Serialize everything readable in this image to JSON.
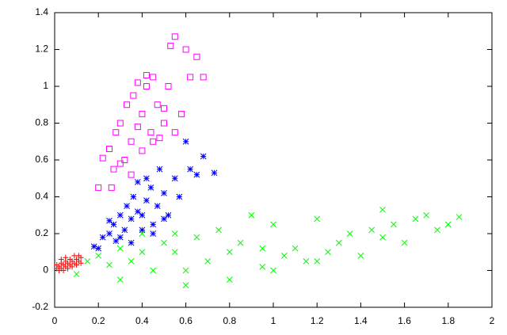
{
  "chart_data": {
    "type": "scatter",
    "xlim": [
      0,
      2
    ],
    "ylim": [
      -0.2,
      1.4
    ],
    "xticks": [
      0,
      0.2,
      0.4,
      0.6,
      0.8,
      1,
      1.2,
      1.4,
      1.6,
      1.8,
      2
    ],
    "yticks": [
      -0.2,
      0,
      0.2,
      0.4,
      0.6,
      0.8,
      1,
      1.2,
      1.4
    ],
    "grid": false,
    "series": [
      {
        "color": "#00ff00",
        "marker": "x",
        "x": [
          0.1,
          0.15,
          0.2,
          0.25,
          0.3,
          0.35,
          0.4,
          0.45,
          0.5,
          0.55,
          0.6,
          0.65,
          0.7,
          0.75,
          0.8,
          0.85,
          0.9,
          0.95,
          1.0,
          1.05,
          1.1,
          1.15,
          1.2,
          1.25,
          1.3,
          1.35,
          1.4,
          1.45,
          1.5,
          1.55,
          1.6,
          1.65,
          1.7,
          1.75,
          1.8,
          1.85,
          0.8,
          1.0,
          1.2,
          0.4,
          0.6,
          0.95,
          1.5,
          0.3,
          0.55
        ],
        "values": [
          -0.02,
          0.05,
          0.08,
          0.03,
          0.12,
          0.05,
          0.2,
          0.0,
          0.15,
          0.1,
          -0.08,
          0.18,
          0.05,
          0.22,
          -0.05,
          0.15,
          0.3,
          0.02,
          0.25,
          0.08,
          0.12,
          0.05,
          0.28,
          0.1,
          0.15,
          0.2,
          0.08,
          0.22,
          0.18,
          0.25,
          0.15,
          0.28,
          0.3,
          0.22,
          0.25,
          0.29,
          0.1,
          0.0,
          0.05,
          0.1,
          0.0,
          0.12,
          0.33,
          -0.05,
          0.2
        ]
      },
      {
        "color": "#0000ff",
        "marker": "asterisk",
        "x": [
          0.2,
          0.22,
          0.25,
          0.27,
          0.28,
          0.3,
          0.32,
          0.33,
          0.35,
          0.36,
          0.38,
          0.4,
          0.42,
          0.44,
          0.45,
          0.47,
          0.5,
          0.52,
          0.55,
          0.57,
          0.6,
          0.62,
          0.65,
          0.68,
          0.73,
          0.3,
          0.35,
          0.4,
          0.45,
          0.5,
          0.38,
          0.42,
          0.48,
          0.18,
          0.25
        ],
        "values": [
          0.12,
          0.18,
          0.2,
          0.25,
          0.16,
          0.3,
          0.22,
          0.35,
          0.28,
          0.4,
          0.32,
          0.3,
          0.38,
          0.45,
          0.25,
          0.35,
          0.42,
          0.3,
          0.5,
          0.4,
          0.7,
          0.55,
          0.52,
          0.62,
          0.53,
          0.18,
          0.15,
          0.22,
          0.2,
          0.28,
          0.48,
          0.5,
          0.55,
          0.13,
          0.27
        ]
      },
      {
        "color": "#ff00ff",
        "marker": "square",
        "x": [
          0.2,
          0.22,
          0.25,
          0.27,
          0.28,
          0.3,
          0.32,
          0.33,
          0.35,
          0.36,
          0.38,
          0.4,
          0.42,
          0.44,
          0.45,
          0.47,
          0.5,
          0.52,
          0.55,
          0.6,
          0.62,
          0.65,
          0.68,
          0.55,
          0.58,
          0.3,
          0.35,
          0.4,
          0.45,
          0.5,
          0.38,
          0.42,
          0.48,
          0.26,
          0.53
        ],
        "values": [
          0.45,
          0.61,
          0.66,
          0.55,
          0.75,
          0.8,
          0.6,
          0.9,
          0.7,
          0.95,
          0.78,
          0.85,
          1.0,
          0.75,
          1.05,
          0.9,
          0.88,
          1.0,
          1.27,
          1.2,
          1.05,
          1.16,
          1.05,
          0.75,
          0.85,
          0.58,
          0.52,
          0.65,
          0.7,
          0.8,
          1.02,
          1.06,
          0.72,
          0.45,
          1.22
        ]
      },
      {
        "color": "#ff0000",
        "marker": "plus",
        "x": [
          0.01,
          0.02,
          0.03,
          0.04,
          0.05,
          0.06,
          0.07,
          0.08,
          0.09,
          0.1,
          0.11,
          0.12,
          0.03,
          0.05,
          0.07,
          0.09,
          0.02,
          0.04,
          0.06,
          0.08,
          0.1,
          0.01,
          0.03,
          0.05,
          0.11,
          0.12
        ],
        "values": [
          0.01,
          0.02,
          0.01,
          0.03,
          0.02,
          0.04,
          0.03,
          0.05,
          0.04,
          0.06,
          0.05,
          0.07,
          0.04,
          0.05,
          0.06,
          0.08,
          0.0,
          0.0,
          0.01,
          0.02,
          0.03,
          0.03,
          0.06,
          0.07,
          0.08,
          0.04
        ]
      }
    ]
  }
}
